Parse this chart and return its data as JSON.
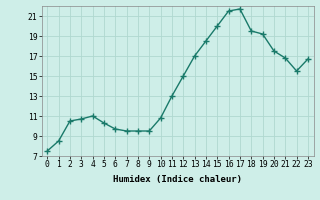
{
  "x": [
    0,
    1,
    2,
    3,
    4,
    5,
    6,
    7,
    8,
    9,
    10,
    11,
    12,
    13,
    14,
    15,
    16,
    17,
    18,
    19,
    20,
    21,
    22,
    23
  ],
  "y": [
    7.5,
    8.5,
    10.5,
    10.7,
    11.0,
    10.3,
    9.7,
    9.5,
    9.5,
    9.5,
    10.8,
    13.0,
    15.0,
    17.0,
    18.5,
    20.0,
    21.5,
    21.7,
    19.5,
    19.2,
    17.5,
    16.8,
    15.5,
    16.7
  ],
  "xlabel": "Humidex (Indice chaleur)",
  "xlim": [
    -0.5,
    23.5
  ],
  "ylim": [
    7,
    22
  ],
  "yticks": [
    7,
    9,
    11,
    13,
    15,
    17,
    19,
    21
  ],
  "xtick_labels": [
    "0",
    "1",
    "2",
    "3",
    "4",
    "5",
    "6",
    "7",
    "8",
    "9",
    "10",
    "11",
    "12",
    "13",
    "14",
    "15",
    "16",
    "17",
    "18",
    "19",
    "20",
    "21",
    "22",
    "23"
  ],
  "bg_color": "#ceeee8",
  "grid_color": "#b0d8d0",
  "line_color": "#1a7a6a",
  "marker": "+",
  "marker_size": 4,
  "line_width": 1.0,
  "xlabel_fontsize": 6.5,
  "tick_fontsize": 5.8
}
